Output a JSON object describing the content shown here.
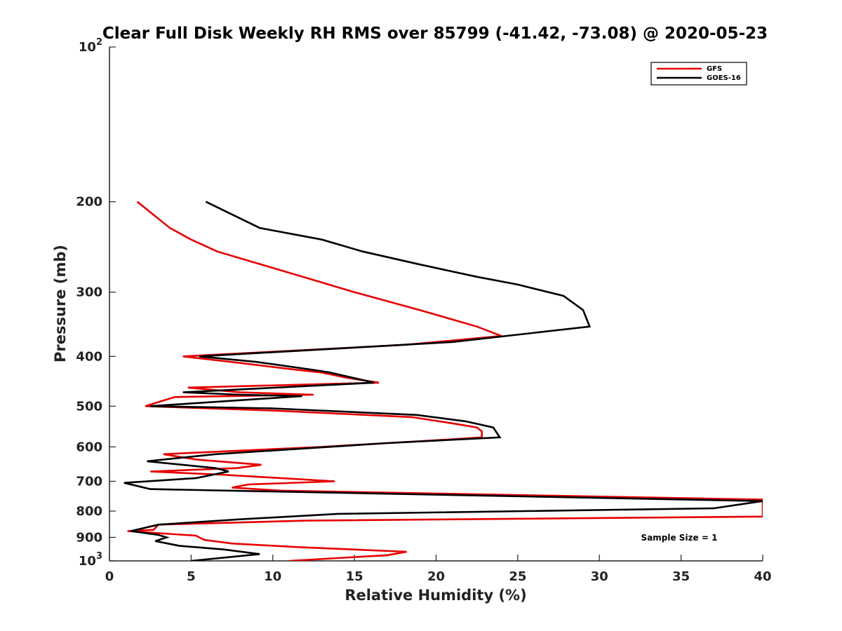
{
  "chart_data": {
    "type": "line",
    "title": "Clear Full Disk Weekly RH RMS over 85799 (-41.42, -73.08) @ 2020-05-23",
    "xlabel": "Relative Humidity (%)",
    "ylabel": "Pressure (mb)",
    "xlim": [
      0,
      40
    ],
    "ylim": [
      100,
      1000
    ],
    "y_scale": "log",
    "y_reversed": true,
    "grid": false,
    "legend_position": "top-right",
    "x_ticks": [
      "0",
      "5",
      "10",
      "15",
      "20",
      "25",
      "30",
      "35",
      "40"
    ],
    "y_ticks": [
      {
        "value": 100,
        "base": "10",
        "exp": "2"
      },
      {
        "value": 200,
        "label": "200"
      },
      {
        "value": 300,
        "label": "300"
      },
      {
        "value": 400,
        "label": "400"
      },
      {
        "value": 500,
        "label": "500"
      },
      {
        "value": 600,
        "label": "600"
      },
      {
        "value": 700,
        "label": "700"
      },
      {
        "value": 800,
        "label": "800"
      },
      {
        "value": 900,
        "label": "900"
      },
      {
        "value": 1000,
        "base": "10",
        "exp": "3"
      }
    ],
    "annotation": "Sample Size = 1",
    "series": [
      {
        "name": "GFS",
        "color": "#e60000",
        "points": [
          [
            1.7,
            200
          ],
          [
            3.7,
            225
          ],
          [
            5.0,
            237
          ],
          [
            6.6,
            250
          ],
          [
            11.0,
            275
          ],
          [
            15.0,
            300
          ],
          [
            19.0,
            325
          ],
          [
            22.5,
            350
          ],
          [
            24.0,
            365
          ],
          [
            18.0,
            380
          ],
          [
            4.5,
            400
          ],
          [
            8.0,
            412
          ],
          [
            11.5,
            425
          ],
          [
            13.0,
            430
          ],
          [
            14.5,
            440
          ],
          [
            16.5,
            450
          ],
          [
            4.8,
            460
          ],
          [
            8.0,
            470
          ],
          [
            12.5,
            475
          ],
          [
            4.0,
            480
          ],
          [
            2.2,
            500
          ],
          [
            10.0,
            510
          ],
          [
            18.5,
            525
          ],
          [
            21.0,
            540
          ],
          [
            22.5,
            550
          ],
          [
            22.8,
            560
          ],
          [
            22.8,
            575
          ],
          [
            21.0,
            580
          ],
          [
            17.0,
            590
          ],
          [
            13.0,
            600
          ],
          [
            3.3,
            620
          ],
          [
            5.3,
            635
          ],
          [
            9.3,
            650
          ],
          [
            7.8,
            660
          ],
          [
            2.5,
            670
          ],
          [
            7.0,
            680
          ],
          [
            13.8,
            700
          ],
          [
            8.5,
            710
          ],
          [
            7.5,
            720
          ],
          [
            10.5,
            730
          ],
          [
            40.0,
            760
          ],
          [
            40.0,
            820
          ],
          [
            12.0,
            835
          ],
          [
            3.0,
            850
          ],
          [
            2.7,
            870
          ],
          [
            1.1,
            875
          ],
          [
            5.3,
            893
          ],
          [
            5.5,
            900
          ],
          [
            5.8,
            910
          ],
          [
            7.5,
            925
          ],
          [
            11.5,
            940
          ],
          [
            18.2,
            960
          ],
          [
            17.0,
            975
          ],
          [
            11.0,
            1000
          ]
        ]
      },
      {
        "name": "GOES-16",
        "color": "#000000",
        "points": [
          [
            5.9,
            200
          ],
          [
            9.2,
            225
          ],
          [
            13.0,
            237
          ],
          [
            15.5,
            250
          ],
          [
            19.0,
            265
          ],
          [
            22.5,
            280
          ],
          [
            25.0,
            290
          ],
          [
            27.8,
            305
          ],
          [
            29.0,
            325
          ],
          [
            29.4,
            350
          ],
          [
            21.0,
            375
          ],
          [
            5.5,
            400
          ],
          [
            9.0,
            410
          ],
          [
            12.5,
            425
          ],
          [
            13.5,
            430
          ],
          [
            16.2,
            450
          ],
          [
            4.5,
            470
          ],
          [
            8.0,
            475
          ],
          [
            11.8,
            478
          ],
          [
            2.5,
            500
          ],
          [
            10.0,
            505
          ],
          [
            18.8,
            520
          ],
          [
            21.8,
            535
          ],
          [
            23.5,
            550
          ],
          [
            23.9,
            575
          ],
          [
            17.0,
            590
          ],
          [
            6.5,
            620
          ],
          [
            2.3,
            640
          ],
          [
            6.5,
            660
          ],
          [
            7.3,
            670
          ],
          [
            5.3,
            690
          ],
          [
            0.9,
            705
          ],
          [
            2.5,
            725
          ],
          [
            40.0,
            765
          ],
          [
            37.0,
            790
          ],
          [
            14.0,
            810
          ],
          [
            8.0,
            830
          ],
          [
            3.0,
            850
          ],
          [
            1.3,
            875
          ],
          [
            3.0,
            890
          ],
          [
            3.5,
            900
          ],
          [
            2.8,
            915
          ],
          [
            4.3,
            935
          ],
          [
            7.0,
            950
          ],
          [
            9.2,
            970
          ],
          [
            5.0,
            1000
          ]
        ]
      }
    ]
  }
}
